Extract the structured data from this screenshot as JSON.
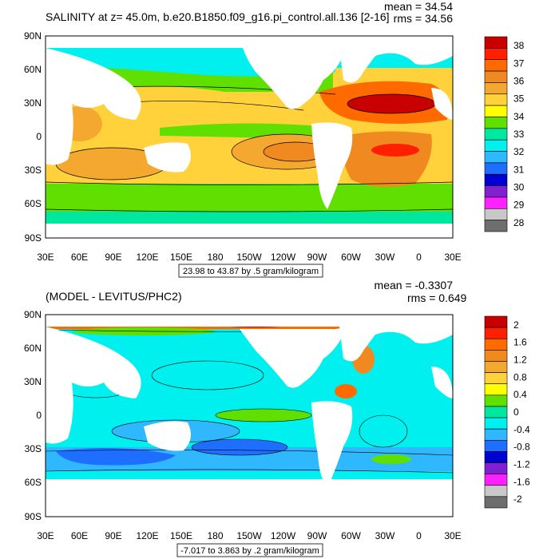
{
  "top": {
    "title": "SALINITY at z=  45.0m, b.e20.B1850.f09_g16.pi_control.all.136 [2-16]",
    "mean": "mean = 34.54",
    "rms": "rms = 34.56",
    "range_label": "23.98 to 43.87 by .5 gram/kilogram",
    "colorbar_labels": [
      "38",
      "37",
      "36",
      "35",
      "34",
      "33",
      "32",
      "31",
      "30",
      "29",
      "28"
    ],
    "colorbar_colors": [
      "#c80000",
      "#ff2000",
      "#ff6a00",
      "#f08a20",
      "#f5a830",
      "#ffd23c",
      "#ffff00",
      "#60e000",
      "#00e8a0",
      "#00f0f0",
      "#30b8ff",
      "#1e6eff",
      "#0000d0",
      "#8020d0",
      "#ff20ff",
      "#c8c8c8",
      "#6e6e6e"
    ]
  },
  "bottom": {
    "title": "(MODEL - LEVITUS/PHC2)",
    "mean": "mean = -0.3307",
    "rms": "rms = 0.649",
    "range_label": "-7.017 to 3.863 by .2 gram/kilogram",
    "colorbar_labels": [
      "2",
      "1.6",
      "1.2",
      "0.8",
      "0.4",
      "0",
      "-0.4",
      "-0.8",
      "-1.2",
      "-1.6",
      "-2"
    ],
    "colorbar_colors": [
      "#c80000",
      "#ff2000",
      "#ff6a00",
      "#f08a20",
      "#f5a830",
      "#ffd23c",
      "#ffff00",
      "#60e000",
      "#00e8a0",
      "#00f0f0",
      "#30b8ff",
      "#1e6eff",
      "#0000d0",
      "#8020d0",
      "#ff20ff",
      "#c8c8c8",
      "#6e6e6e"
    ]
  },
  "axes": {
    "lat_labels": [
      "90N",
      "60N",
      "30N",
      "0",
      "30S",
      "60S",
      "90S"
    ],
    "lon_labels": [
      "30E",
      "60E",
      "90E",
      "120E",
      "150E",
      "180",
      "150W",
      "120W",
      "90W",
      "60W",
      "30W",
      "0",
      "30E"
    ]
  },
  "colors": {
    "land": "#ffffff",
    "ocean_base_top": "#ffd23c",
    "ocean_base_bottom": "#00f0f0"
  }
}
